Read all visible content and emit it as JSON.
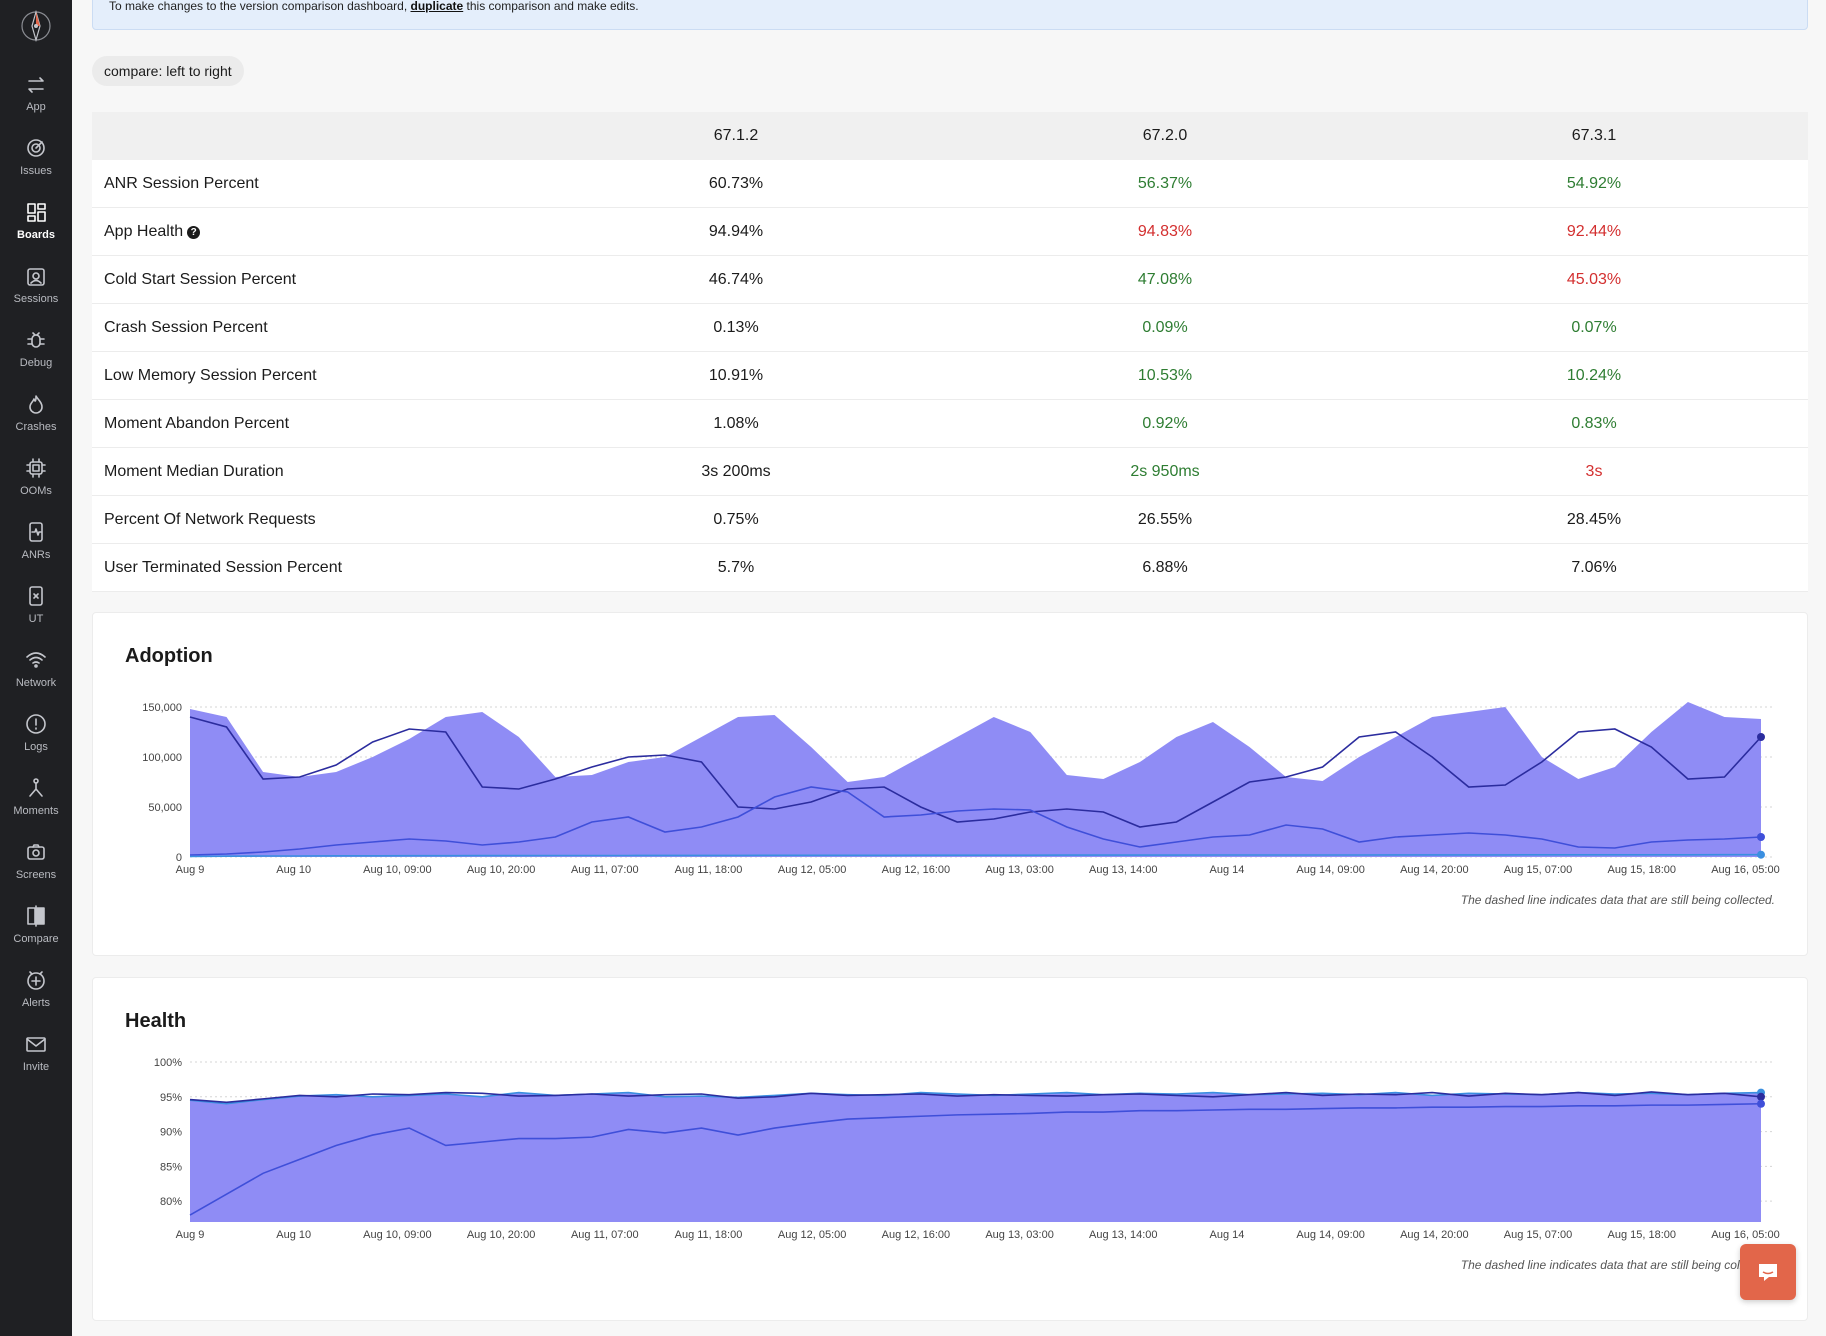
{
  "sidebar": {
    "items": [
      {
        "label": "App",
        "icon": "swap-arrows-icon"
      },
      {
        "label": "Issues",
        "icon": "target-icon"
      },
      {
        "label": "Boards",
        "icon": "boards-grid-icon",
        "active": true
      },
      {
        "label": "Sessions",
        "icon": "sessions-icon"
      },
      {
        "label": "Debug",
        "icon": "bug-icon"
      },
      {
        "label": "Crashes",
        "icon": "flame-icon"
      },
      {
        "label": "OOMs",
        "icon": "chip-icon"
      },
      {
        "label": "ANRs",
        "icon": "phone-pulse-icon"
      },
      {
        "label": "UT",
        "icon": "phone-x-icon"
      },
      {
        "label": "Network",
        "icon": "wifi-icon"
      },
      {
        "label": "Logs",
        "icon": "alert-circle-icon"
      },
      {
        "label": "Moments",
        "icon": "moments-icon"
      },
      {
        "label": "Screens",
        "icon": "camera-icon"
      },
      {
        "label": "Compare",
        "icon": "compare-icon"
      },
      {
        "label": "Alerts",
        "icon": "alert-plus-icon"
      },
      {
        "label": "Invite",
        "icon": "mail-icon"
      }
    ]
  },
  "banner": {
    "prefix": "To make changes to the version comparison dashboard,",
    "link": "duplicate",
    "suffix": "this comparison and make edits."
  },
  "compare_chip": "compare: left to right",
  "table": {
    "versions": [
      "67.1.2",
      "67.2.0",
      "67.3.1"
    ],
    "rows": [
      {
        "name": "ANR Session Percent",
        "values": [
          "60.73%",
          "56.37%",
          "54.92%"
        ],
        "status": [
          "neutral",
          "green",
          "green"
        ]
      },
      {
        "name": "App Health",
        "help": true,
        "values": [
          "94.94%",
          "94.83%",
          "92.44%"
        ],
        "status": [
          "neutral",
          "red",
          "red"
        ]
      },
      {
        "name": "Cold Start Session Percent",
        "values": [
          "46.74%",
          "47.08%",
          "45.03%"
        ],
        "status": [
          "neutral",
          "green",
          "red"
        ]
      },
      {
        "name": "Crash Session Percent",
        "values": [
          "0.13%",
          "0.09%",
          "0.07%"
        ],
        "status": [
          "neutral",
          "green",
          "green"
        ]
      },
      {
        "name": "Low Memory Session Percent",
        "values": [
          "10.91%",
          "10.53%",
          "10.24%"
        ],
        "status": [
          "neutral",
          "green",
          "green"
        ]
      },
      {
        "name": "Moment Abandon Percent",
        "values": [
          "1.08%",
          "0.92%",
          "0.83%"
        ],
        "status": [
          "neutral",
          "green",
          "green"
        ]
      },
      {
        "name": "Moment Median Duration",
        "values": [
          "3s 200ms",
          "2s 950ms",
          "3s"
        ],
        "status": [
          "neutral",
          "green",
          "red"
        ]
      },
      {
        "name": "Percent Of Network Requests",
        "values": [
          "0.75%",
          "26.55%",
          "28.45%"
        ],
        "status": [
          "neutral",
          "neutral",
          "neutral"
        ]
      },
      {
        "name": "User Terminated Session Percent",
        "values": [
          "5.7%",
          "6.88%",
          "7.06%"
        ],
        "status": [
          "neutral",
          "neutral",
          "neutral"
        ]
      }
    ]
  },
  "colors": {
    "area": "#8f8cf5",
    "line_dark": "#2b2c9e",
    "line_mid": "#3f4fd9",
    "line_light": "#3a8fe0",
    "green": "#2e7d32",
    "red": "#d32f2f"
  },
  "chart_data": [
    {
      "type": "area",
      "title": "Adoption",
      "note": "The dashed line indicates data that are still being collected.",
      "x_tick_labels": [
        "Aug 9",
        "Aug 10",
        "Aug 10, 09:00",
        "Aug 10, 20:00",
        "Aug 11, 07:00",
        "Aug 11, 18:00",
        "Aug 12, 05:00",
        "Aug 12, 16:00",
        "Aug 13, 03:00",
        "Aug 13, 14:00",
        "Aug 14",
        "Aug 14, 09:00",
        "Aug 14, 20:00",
        "Aug 15, 07:00",
        "Aug 15, 18:00",
        "Aug 16, 05:00"
      ],
      "y_tick_labels": [
        "0",
        "50,000",
        "100,000",
        "150,000"
      ],
      "ylim": [
        0,
        160000
      ],
      "x_hours": [
        0,
        4,
        8,
        12,
        16,
        20,
        24,
        28,
        32,
        36,
        40,
        44,
        48,
        52,
        56,
        60,
        64,
        68,
        72,
        76,
        80,
        84,
        88,
        92,
        96,
        100,
        104,
        108,
        112,
        116,
        120,
        124,
        128,
        132,
        136,
        140,
        144,
        148,
        152,
        156,
        160,
        164,
        168,
        172
      ],
      "series": [
        {
          "values": [
            148000,
            140000,
            85000,
            80000,
            85000,
            100000,
            118000,
            140000,
            145000,
            120000,
            80000,
            82000,
            95000,
            100000,
            120000,
            140000,
            142000,
            110000,
            75000,
            80000,
            100000,
            120000,
            140000,
            125000,
            82000,
            78000,
            95000,
            120000,
            135000,
            110000,
            80000,
            76000,
            100000,
            120000,
            140000,
            145000,
            150000,
            100000,
            78000,
            90000,
            125000,
            155000,
            140000,
            138000
          ]
        },
        {
          "values": [
            140000,
            130000,
            78000,
            80000,
            92000,
            115000,
            128000,
            125000,
            70000,
            68000,
            78000,
            90000,
            100000,
            102000,
            95000,
            50000,
            48000,
            55000,
            68000,
            70000,
            50000,
            35000,
            38000,
            45000,
            48000,
            45000,
            30000,
            35000,
            55000,
            75000,
            80000,
            90000,
            120000,
            125000,
            100000,
            70000,
            72000,
            95000,
            125000,
            128000,
            110000,
            78000,
            80000,
            120000
          ]
        },
        {
          "values": [
            2000,
            3000,
            5000,
            8000,
            12000,
            15000,
            18000,
            16000,
            12000,
            15000,
            20000,
            35000,
            40000,
            25000,
            30000,
            40000,
            60000,
            70000,
            65000,
            40000,
            42000,
            46000,
            48000,
            47000,
            30000,
            18000,
            10000,
            15000,
            20000,
            22000,
            32000,
            28000,
            15000,
            20000,
            22000,
            24000,
            22000,
            18000,
            10000,
            9000,
            15000,
            17000,
            18000,
            20000
          ]
        },
        {
          "values": [
            500,
            800,
            1000,
            1000,
            1200,
            1200,
            1300,
            1300,
            1400,
            1400,
            1500,
            1500,
            1500,
            1600,
            1600,
            1600,
            1700,
            1700,
            1700,
            1700,
            1800,
            1800,
            1800,
            1800,
            1900,
            1900,
            1900,
            1900,
            2000,
            2000,
            2000,
            2000,
            2000,
            2100,
            2100,
            2100,
            2100,
            2200,
            2200,
            2200,
            2200,
            2200,
            2300,
            2300
          ]
        }
      ]
    },
    {
      "type": "area",
      "title": "Health",
      "note": "The dashed line indicates data that are still being collected.",
      "x_tick_labels": [
        "Aug 9",
        "Aug 10",
        "Aug 10, 09:00",
        "Aug 10, 20:00",
        "Aug 11, 07:00",
        "Aug 11, 18:00",
        "Aug 12, 05:00",
        "Aug 12, 16:00",
        "Aug 13, 03:00",
        "Aug 13, 14:00",
        "Aug 14",
        "Aug 14, 09:00",
        "Aug 14, 20:00",
        "Aug 15, 07:00",
        "Aug 15, 18:00",
        "Aug 16, 05:00"
      ],
      "y_tick_labels": [
        "80%",
        "85%",
        "90%",
        "95%",
        "100%"
      ],
      "ylim": [
        77,
        100
      ],
      "x_hours": [
        0,
        4,
        8,
        12,
        16,
        20,
        24,
        28,
        32,
        36,
        40,
        44,
        48,
        52,
        56,
        60,
        64,
        68,
        72,
        76,
        80,
        84,
        88,
        92,
        96,
        100,
        104,
        108,
        112,
        116,
        120,
        124,
        128,
        132,
        136,
        140,
        144,
        148,
        152,
        156,
        160,
        164,
        168,
        172
      ],
      "series": [
        {
          "values": [
            94.5,
            94.0,
            94.6,
            95.1,
            95.3,
            95.0,
            95.2,
            95.4,
            95.0,
            95.6,
            95.2,
            95.4,
            95.6,
            95.0,
            95.1,
            94.9,
            95.2,
            95.5,
            95.3,
            95.2,
            95.6,
            95.4,
            95.2,
            95.4,
            95.6,
            95.3,
            95.5,
            95.4,
            95.6,
            95.3,
            95.4,
            95.5,
            95.3,
            95.6,
            95.2,
            95.5,
            95.4,
            95.3,
            95.6,
            95.4,
            95.5,
            95.3,
            95.5,
            95.6
          ]
        },
        {
          "values": [
            94.6,
            94.2,
            94.7,
            95.2,
            95.0,
            95.4,
            95.3,
            95.6,
            95.5,
            95.1,
            95.2,
            95.4,
            95.1,
            95.3,
            95.4,
            94.8,
            95.0,
            95.5,
            95.2,
            95.3,
            95.4,
            95.1,
            95.3,
            95.2,
            95.1,
            95.3,
            95.4,
            95.2,
            95.0,
            95.3,
            95.6,
            95.2,
            95.4,
            95.3,
            95.6,
            95.1,
            95.5,
            95.3,
            95.6,
            95.2,
            95.7,
            95.3,
            95.5,
            95.0
          ]
        },
        {
          "values": [
            78.0,
            81.0,
            84.0,
            86.0,
            88.0,
            89.5,
            90.5,
            88.0,
            88.5,
            89.0,
            89.0,
            89.2,
            90.3,
            89.8,
            90.5,
            89.5,
            90.5,
            91.2,
            91.8,
            92.0,
            92.2,
            92.4,
            92.5,
            92.6,
            92.8,
            92.8,
            93.0,
            93.0,
            93.1,
            93.2,
            93.2,
            93.3,
            93.4,
            93.4,
            93.5,
            93.5,
            93.6,
            93.6,
            93.7,
            93.7,
            93.8,
            93.8,
            93.9,
            94.0
          ]
        }
      ]
    }
  ],
  "chat_button": {
    "icon": "chat-bubble-icon"
  }
}
